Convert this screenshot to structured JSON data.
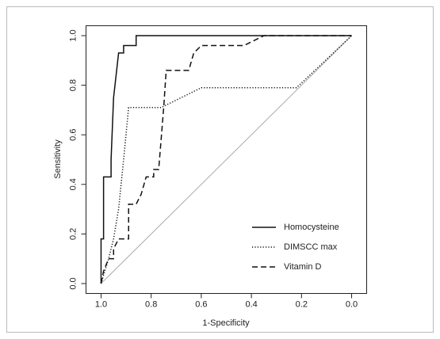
{
  "chart_data": {
    "type": "line",
    "x_label": "1-Specificity",
    "y_label": "Sensitivity",
    "xlim": [
      1.06,
      -0.06
    ],
    "ylim": [
      -0.04,
      1.04
    ],
    "xticks": [
      {
        "value": 1,
        "label": "1.0"
      },
      {
        "value": 0.8,
        "label": "0.8"
      },
      {
        "value": 0.6,
        "label": "0.6"
      },
      {
        "value": 0.4,
        "label": "0.4"
      },
      {
        "value": 0.2,
        "label": "0.2"
      },
      {
        "value": 0,
        "label": "0.0"
      }
    ],
    "yticks": [
      {
        "value": 0,
        "label": "0.0"
      },
      {
        "value": 0.2,
        "label": "0.2"
      },
      {
        "value": 0.4,
        "label": "0.4"
      },
      {
        "value": 0.6,
        "label": "0.6"
      },
      {
        "value": 0.8,
        "label": "0.8"
      },
      {
        "value": 1,
        "label": "1.0"
      }
    ],
    "reference_color": "#aaaaaa",
    "series": [
      {
        "name": "Homocysteine",
        "color": "#111111",
        "linestyle": "solid",
        "x": [
          1,
          1,
          0.99,
          0.99,
          0.96,
          0.96,
          0.95,
          0.93,
          0.91,
          0.91,
          0.86,
          0.86,
          0.83,
          0
        ],
        "values": [
          0,
          0.18,
          0.18,
          0.43,
          0.43,
          0.5,
          0.75,
          0.93,
          0.93,
          0.96,
          0.96,
          1,
          1,
          1
        ]
      },
      {
        "name": "DIMSCC max",
        "color": "#111111",
        "linestyle": "dotted",
        "x": [
          1,
          0.97,
          0.95,
          0.93,
          0.91,
          0.89,
          0.76,
          0.72,
          0.6,
          0.22,
          0
        ],
        "values": [
          0,
          0.1,
          0.18,
          0.3,
          0.5,
          0.71,
          0.71,
          0.73,
          0.79,
          0.79,
          1
        ]
      },
      {
        "name": "Vitamin D",
        "color": "#111111",
        "linestyle": "dashed",
        "x": [
          1,
          0.99,
          0.97,
          0.95,
          0.95,
          0.93,
          0.89,
          0.89,
          0.86,
          0.84,
          0.82,
          0.79,
          0.79,
          0.77,
          0.75,
          0.74,
          0.65,
          0.63,
          0.6,
          0.43,
          0.39,
          0.35,
          0
        ],
        "values": [
          0,
          0.05,
          0.1,
          0.1,
          0.14,
          0.18,
          0.18,
          0.32,
          0.32,
          0.36,
          0.43,
          0.43,
          0.46,
          0.46,
          0.71,
          0.86,
          0.86,
          0.93,
          0.96,
          0.96,
          0.98,
          1,
          1
        ]
      }
    ]
  }
}
